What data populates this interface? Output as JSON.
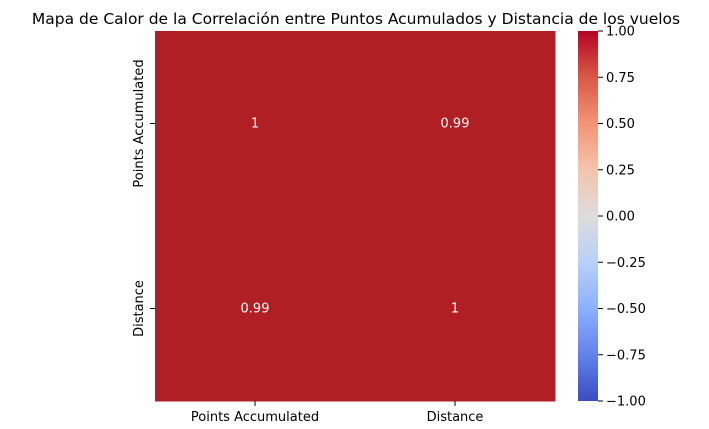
{
  "chart_data": {
    "type": "heatmap",
    "title": "Mapa de Calor de la Correlación entre Puntos Acumulados y Distancia de los vuelos",
    "x_categories": [
      "Points Accumulated",
      "Distance"
    ],
    "y_categories": [
      "Points Accumulated",
      "Distance"
    ],
    "values": [
      [
        1,
        0.99
      ],
      [
        0.99,
        1
      ]
    ],
    "annotations": [
      [
        "1",
        "0.99"
      ],
      [
        "0.99",
        "1"
      ]
    ],
    "colormap": "coolwarm",
    "vmin": -1,
    "vmax": 1,
    "colorbar_ticks": [
      1.0,
      0.75,
      0.5,
      0.25,
      0.0,
      -0.25,
      -0.5,
      -0.75,
      -1.0
    ],
    "colorbar_tick_labels": [
      "1.00",
      "0.75",
      "0.50",
      "0.25",
      "0.00",
      "−0.25",
      "−0.50",
      "−0.75",
      "−1.00"
    ],
    "colorbar_colors": {
      "low": "#3b4cc0",
      "mid": "#dddddd",
      "high": "#b40426"
    },
    "cell_color": "#b01f24"
  }
}
